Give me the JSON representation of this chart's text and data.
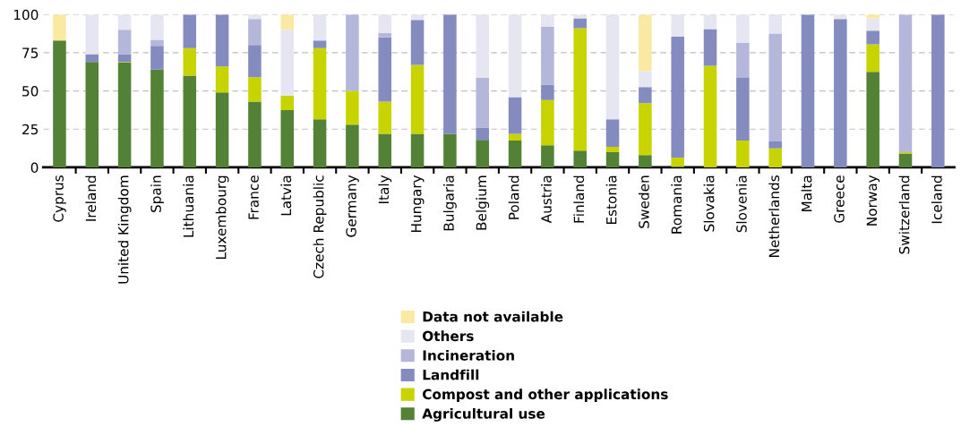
{
  "chart_data": {
    "type": "bar",
    "stacked": true,
    "categories": [
      "Cyprus",
      "Ireland",
      "United Kingdom",
      "Spain",
      "Lithuania",
      "Luxembourg",
      "France",
      "Latvia",
      "Czech Republic",
      "Germany",
      "Italy",
      "Hungary",
      "Bulgaria",
      "Belgium",
      "Poland",
      "Austria",
      "Finland",
      "Estonia",
      "Sweden",
      "Romania",
      "Slovakia",
      "Slovenia",
      "Netherlands",
      "Malta",
      "Greece",
      "Norway",
      "Switzerland",
      "Iceland"
    ],
    "series": [
      {
        "name": "Agricultural use",
        "color": "#538135",
        "values": [
          83,
          69,
          68.5,
          64,
          60,
          49,
          43,
          37.5,
          31.5,
          28,
          22,
          22,
          22,
          18,
          17.5,
          14.5,
          11,
          10,
          8,
          0.5,
          0,
          0,
          0,
          0,
          0,
          62.5,
          9,
          0
        ]
      },
      {
        "name": "Compost and other applications",
        "color": "#c8d400",
        "values": [
          0,
          0,
          0.5,
          0,
          18,
          17,
          16,
          9.5,
          46.5,
          22,
          21,
          45,
          0,
          0,
          4.5,
          29.5,
          80,
          3.5,
          34,
          6,
          66.5,
          17.5,
          12.5,
          0,
          0,
          18,
          1,
          0
        ]
      },
      {
        "name": "Landfill",
        "color": "#848bbf",
        "values": [
          0,
          5,
          5,
          15.5,
          22,
          34,
          21,
          0,
          5,
          0,
          42,
          29.5,
          78,
          8,
          24,
          10,
          6.5,
          18,
          10.5,
          79,
          24,
          41,
          4.5,
          100,
          97,
          9,
          0,
          100
        ]
      },
      {
        "name": "Incineration",
        "color": "#b4b7d9",
        "values": [
          0,
          0,
          16,
          4,
          0,
          0,
          17,
          0,
          0,
          50,
          3,
          0,
          0,
          32.5,
          0,
          38,
          0,
          0,
          0,
          0,
          0,
          23,
          70.5,
          0,
          0,
          0,
          90,
          0
        ]
      },
      {
        "name": "Others",
        "color": "#e6e6f2",
        "values": [
          0,
          26,
          10,
          16.5,
          0,
          0,
          3,
          43,
          17,
          0,
          12,
          3.5,
          0,
          41.5,
          54,
          8,
          2.5,
          68.5,
          10.5,
          14.5,
          9.5,
          18.5,
          12.5,
          0,
          3,
          8,
          0,
          0
        ]
      },
      {
        "name": "Data not available",
        "color": "#f9e9a3",
        "values": [
          17,
          0,
          0,
          0,
          0,
          0,
          0,
          10,
          0,
          0,
          0,
          0,
          0,
          0,
          0,
          0,
          0,
          0,
          37,
          0,
          0,
          0,
          0,
          0,
          0,
          2.5,
          0,
          0
        ]
      }
    ],
    "ylim": [
      0,
      100
    ],
    "yticks": [
      0,
      25,
      50,
      75,
      100
    ],
    "grid": "y",
    "legend": "bottom"
  }
}
